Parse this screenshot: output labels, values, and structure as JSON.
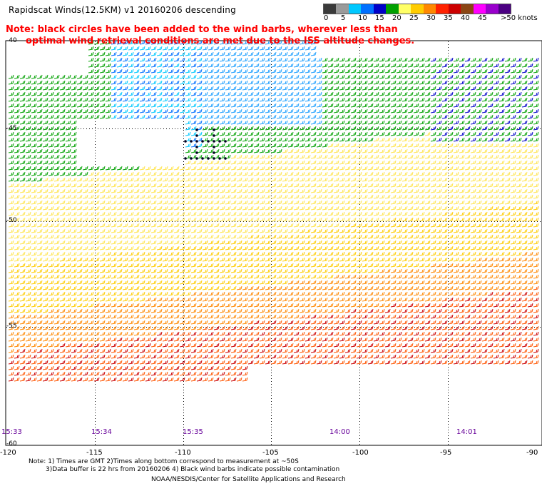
{
  "header": {
    "title": "Rapidscat Winds(12.5KM) v1 20160206 descending",
    "note_line1": "Note: black circles have been added to the wind barbs, wherever less than",
    "note_line2": "optimal wind retrieval conditions are met due to the ISS altitude changes."
  },
  "colorbar": {
    "colors": [
      "#3a3a3a",
      "#9a9a9a",
      "#00c8ff",
      "#0070ff",
      "#0000c8",
      "#00a000",
      "#ffff66",
      "#ffcc00",
      "#ff8800",
      "#ff2200",
      "#cc0000",
      "#8b4513",
      "#ff00ff",
      "#9900cc",
      "#4b0082"
    ],
    "labels": [
      "0",
      "5",
      "10",
      "15",
      "20",
      "25",
      "30",
      "35",
      "40",
      "45",
      ">50 knots"
    ]
  },
  "axes": {
    "lat_labels": [
      "-40",
      "-45",
      "-50",
      "-55",
      "-60"
    ],
    "lon_labels": [
      "-120",
      "-115",
      "-110",
      "-105",
      "-100",
      "-95",
      "-90"
    ]
  },
  "times": [
    "15:33",
    "15:34",
    "15:35",
    "14:00",
    "14:01"
  ],
  "footer": {
    "line1": "Note: 1) Times are GMT 2)Times along bottom correspond to measurement at ~50S",
    "line2": "3)Data buffer is 22 hrs from 20160206 4) Black wind barbs indicate possible contamination",
    "line3": "NOAA/NESDIS/Center for Satellite Applications and Research"
  }
}
